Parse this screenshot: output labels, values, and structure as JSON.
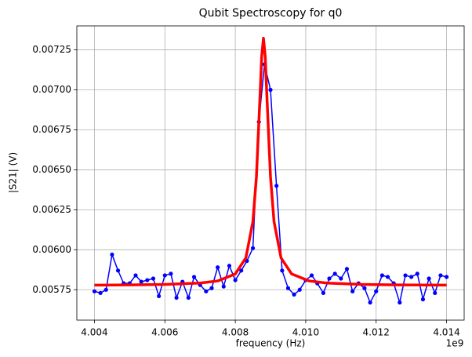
{
  "chart_data": {
    "type": "line",
    "title": "Qubit Spectroscopy for q0",
    "x_label": "frequency (Hz)",
    "y_label": "|S21| (V)",
    "x_offset_label": "1e9",
    "xlim": [
      4.0035,
      4.0145
    ],
    "ylim": [
      0.00556,
      0.0074
    ],
    "xticks": [
      4.004,
      4.006,
      4.008,
      {
        "value": 4.01,
        "label": "4.010"
      },
      4.012,
      4.014
    ],
    "yticks": [
      0.00575,
      {
        "value": 0.006,
        "label": "0.00600"
      },
      0.00625,
      {
        "value": 0.0065,
        "label": "0.00650"
      },
      0.00675,
      {
        "value": 0.007,
        "label": "0.00700"
      },
      0.00725
    ],
    "grid": true,
    "series": [
      {
        "color": "#0000ff",
        "marker": true,
        "linewidth": 1.5,
        "x": [
          4.004,
          4.00417,
          4.00433,
          4.0045,
          4.00467,
          4.00483,
          4.005,
          4.00517,
          4.00533,
          4.0055,
          4.00567,
          4.00583,
          4.006,
          4.00617,
          4.00633,
          4.0065,
          4.00667,
          4.00683,
          4.007,
          4.00717,
          4.00733,
          4.0075,
          4.00767,
          4.00783,
          4.008,
          4.00817,
          4.00833,
          4.0085,
          4.00867,
          4.00883,
          4.009,
          4.00917,
          4.00933,
          4.0095,
          4.00967,
          4.00983,
          4.01,
          4.01017,
          4.01033,
          4.0105,
          4.01067,
          4.01083,
          4.011,
          4.01117,
          4.01133,
          4.0115,
          4.01167,
          4.01183,
          4.012,
          4.01217,
          4.01233,
          4.0125,
          4.01267,
          4.01283,
          4.013,
          4.01317,
          4.01333,
          4.0135,
          4.01367,
          4.01383,
          4.014
        ],
        "values": [
          0.00574,
          0.00573,
          0.00575,
          0.00597,
          0.00587,
          0.00579,
          0.00579,
          0.00584,
          0.0058,
          0.00581,
          0.00582,
          0.00571,
          0.00584,
          0.00585,
          0.0057,
          0.0058,
          0.0057,
          0.00583,
          0.00578,
          0.00574,
          0.00576,
          0.00589,
          0.00577,
          0.0059,
          0.00581,
          0.00587,
          0.00593,
          0.00601,
          0.0068,
          0.00716,
          0.007,
          0.0064,
          0.00587,
          0.00576,
          0.00572,
          0.00575,
          0.00581,
          0.00584,
          0.00579,
          0.00573,
          0.00582,
          0.00585,
          0.00582,
          0.00588,
          0.00574,
          0.00579,
          0.00576,
          0.00567,
          0.00574,
          0.00584,
          0.00583,
          0.00579,
          0.00567,
          0.00584,
          0.00583,
          0.00585,
          0.00569,
          0.00582,
          0.00573,
          0.00584,
          0.00583
        ]
      },
      {
        "color": "#ff0000",
        "marker": false,
        "linewidth": 3.5,
        "x": [
          4.004,
          4.005,
          4.006,
          4.007,
          4.0075,
          4.008,
          4.0083,
          4.0085,
          4.0086,
          4.0087,
          4.00875,
          4.0088,
          4.00885,
          4.0089,
          4.009,
          4.0091,
          4.0093,
          4.0096,
          4.0101,
          4.0106,
          4.0116,
          4.0126,
          4.014
        ],
        "values": [
          0.005779,
          0.00578,
          0.005783,
          0.005792,
          0.005805,
          0.005849,
          0.005949,
          0.006176,
          0.006456,
          0.006949,
          0.007209,
          0.007323,
          0.007209,
          0.006949,
          0.006456,
          0.006176,
          0.005949,
          0.005849,
          0.005805,
          0.005792,
          0.005783,
          0.00578,
          0.005779
        ]
      }
    ]
  }
}
